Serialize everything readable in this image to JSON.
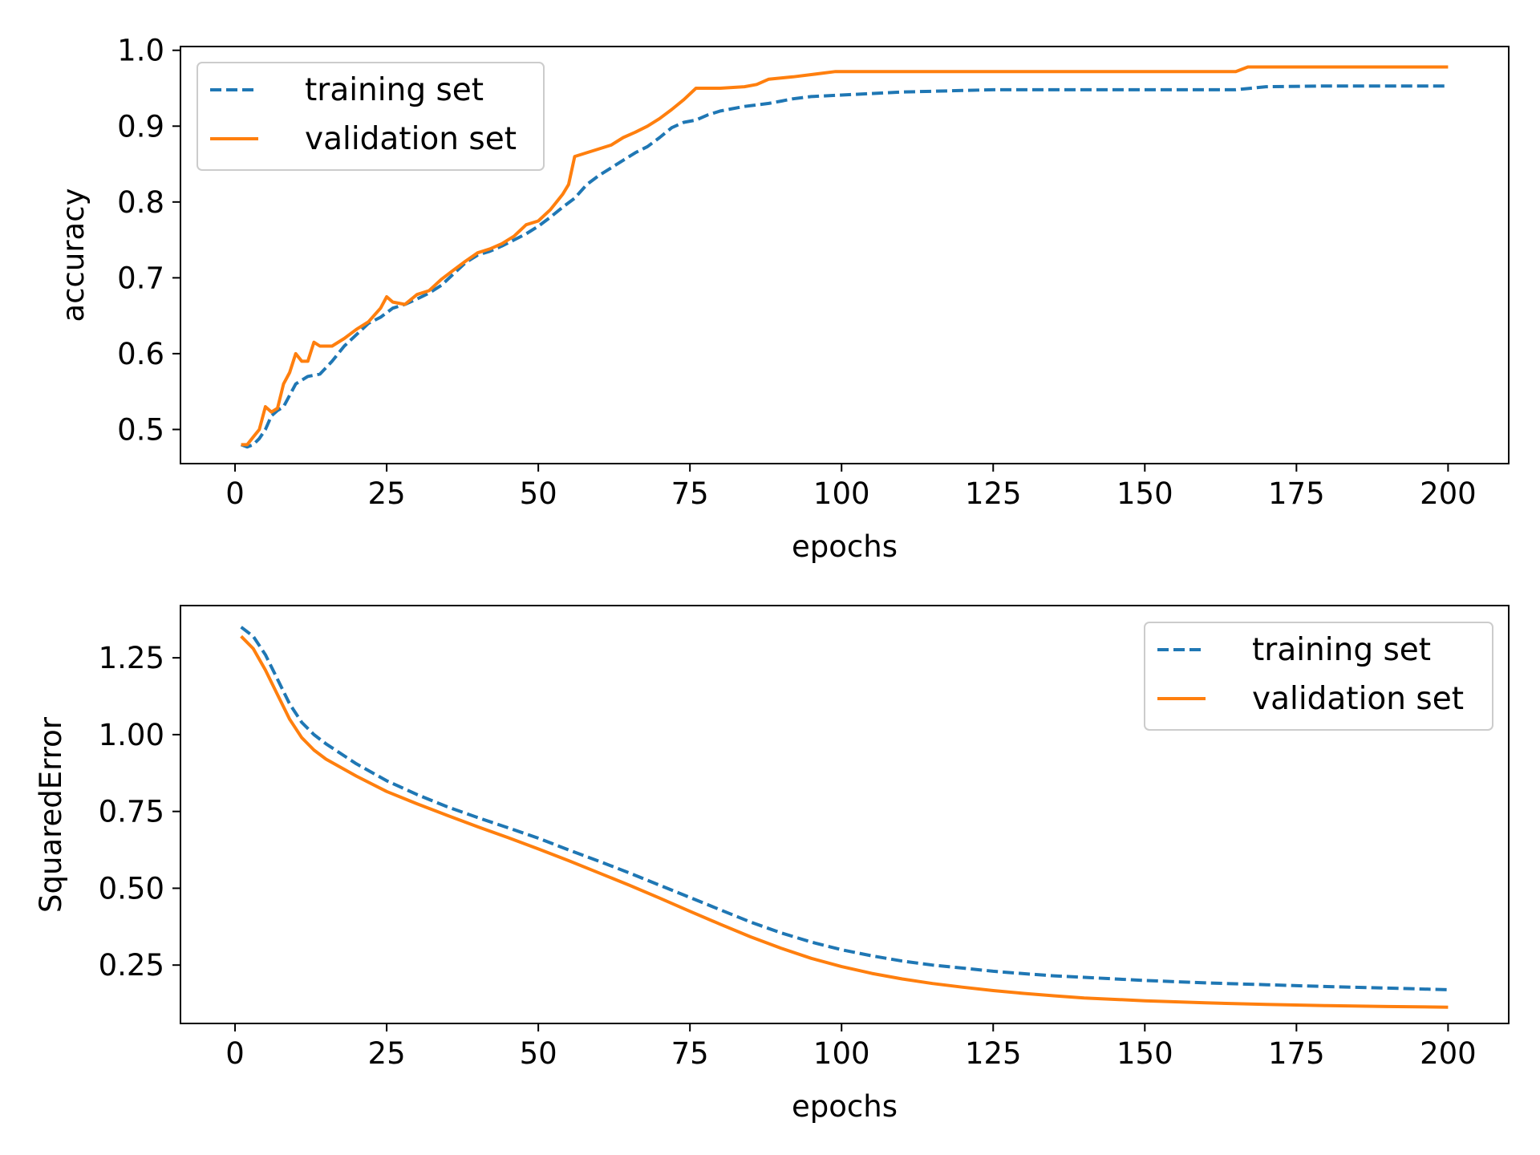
{
  "chart_data": [
    {
      "type": "line",
      "xlabel": "epochs",
      "ylabel": "accuracy",
      "xlim": [
        -9,
        210
      ],
      "ylim": [
        0.455,
        1.005
      ],
      "xticks": [
        0,
        25,
        50,
        75,
        100,
        125,
        150,
        175,
        200
      ],
      "yticks": [
        0.5,
        0.6,
        0.7,
        0.8,
        0.9,
        1.0
      ],
      "ytick_labels": [
        "0.5",
        "0.6",
        "0.7",
        "0.8",
        "0.9",
        "1.0"
      ],
      "legend": "top-left",
      "grid": false,
      "series": [
        {
          "name": "training set",
          "style": "dashed",
          "color": "#1f77b4",
          "points": [
            [
              1,
              0.48
            ],
            [
              2,
              0.477
            ],
            [
              3,
              0.48
            ],
            [
              4,
              0.488
            ],
            [
              5,
              0.5
            ],
            [
              6,
              0.518
            ],
            [
              7,
              0.525
            ],
            [
              8,
              0.53
            ],
            [
              9,
              0.545
            ],
            [
              10,
              0.56
            ],
            [
              11,
              0.565
            ],
            [
              12,
              0.57
            ],
            [
              14,
              0.573
            ],
            [
              16,
              0.59
            ],
            [
              18,
              0.61
            ],
            [
              20,
              0.625
            ],
            [
              22,
              0.64
            ],
            [
              24,
              0.648
            ],
            [
              26,
              0.66
            ],
            [
              28,
              0.665
            ],
            [
              30,
              0.672
            ],
            [
              32,
              0.68
            ],
            [
              34,
              0.69
            ],
            [
              36,
              0.705
            ],
            [
              38,
              0.72
            ],
            [
              40,
              0.73
            ],
            [
              42,
              0.735
            ],
            [
              44,
              0.742
            ],
            [
              46,
              0.75
            ],
            [
              48,
              0.758
            ],
            [
              50,
              0.768
            ],
            [
              52,
              0.78
            ],
            [
              54,
              0.793
            ],
            [
              56,
              0.805
            ],
            [
              58,
              0.823
            ],
            [
              60,
              0.835
            ],
            [
              62,
              0.845
            ],
            [
              64,
              0.855
            ],
            [
              66,
              0.865
            ],
            [
              68,
              0.873
            ],
            [
              70,
              0.885
            ],
            [
              72,
              0.898
            ],
            [
              74,
              0.905
            ],
            [
              76,
              0.908
            ],
            [
              78,
              0.915
            ],
            [
              80,
              0.92
            ],
            [
              82,
              0.923
            ],
            [
              84,
              0.926
            ],
            [
              86,
              0.928
            ],
            [
              88,
              0.93
            ],
            [
              90,
              0.933
            ],
            [
              92,
              0.936
            ],
            [
              95,
              0.939
            ],
            [
              100,
              0.941
            ],
            [
              105,
              0.943
            ],
            [
              110,
              0.945
            ],
            [
              115,
              0.946
            ],
            [
              120,
              0.947
            ],
            [
              125,
              0.948
            ],
            [
              140,
              0.948
            ],
            [
              165,
              0.948
            ],
            [
              170,
              0.952
            ],
            [
              180,
              0.953
            ],
            [
              200,
              0.953
            ]
          ]
        },
        {
          "name": "validation set",
          "style": "solid",
          "color": "#ff7f0e",
          "points": [
            [
              1,
              0.48
            ],
            [
              2,
              0.48
            ],
            [
              3,
              0.49
            ],
            [
              4,
              0.5
            ],
            [
              5,
              0.53
            ],
            [
              6,
              0.523
            ],
            [
              7,
              0.528
            ],
            [
              8,
              0.56
            ],
            [
              9,
              0.575
            ],
            [
              10,
              0.6
            ],
            [
              11,
              0.59
            ],
            [
              12,
              0.59
            ],
            [
              13,
              0.615
            ],
            [
              14,
              0.61
            ],
            [
              16,
              0.61
            ],
            [
              18,
              0.62
            ],
            [
              20,
              0.632
            ],
            [
              22,
              0.642
            ],
            [
              24,
              0.66
            ],
            [
              25,
              0.675
            ],
            [
              26,
              0.668
            ],
            [
              28,
              0.665
            ],
            [
              30,
              0.678
            ],
            [
              32,
              0.683
            ],
            [
              34,
              0.698
            ],
            [
              36,
              0.71
            ],
            [
              38,
              0.722
            ],
            [
              40,
              0.733
            ],
            [
              42,
              0.738
            ],
            [
              44,
              0.745
            ],
            [
              46,
              0.755
            ],
            [
              48,
              0.77
            ],
            [
              50,
              0.775
            ],
            [
              52,
              0.79
            ],
            [
              54,
              0.81
            ],
            [
              55,
              0.823
            ],
            [
              56,
              0.86
            ],
            [
              58,
              0.865
            ],
            [
              60,
              0.87
            ],
            [
              62,
              0.875
            ],
            [
              64,
              0.885
            ],
            [
              66,
              0.892
            ],
            [
              68,
              0.9
            ],
            [
              70,
              0.91
            ],
            [
              72,
              0.922
            ],
            [
              74,
              0.935
            ],
            [
              76,
              0.95
            ],
            [
              80,
              0.95
            ],
            [
              84,
              0.952
            ],
            [
              86,
              0.955
            ],
            [
              88,
              0.962
            ],
            [
              92,
              0.965
            ],
            [
              95,
              0.968
            ],
            [
              99,
              0.972
            ],
            [
              120,
              0.972
            ],
            [
              165,
              0.972
            ],
            [
              167,
              0.978
            ],
            [
              200,
              0.978
            ]
          ]
        }
      ]
    },
    {
      "type": "line",
      "xlabel": "epochs",
      "ylabel": "SquaredError",
      "xlim": [
        -9,
        210
      ],
      "ylim": [
        0.06,
        1.42
      ],
      "xticks": [
        0,
        25,
        50,
        75,
        100,
        125,
        150,
        175,
        200
      ],
      "yticks": [
        0.25,
        0.5,
        0.75,
        1.0,
        1.25
      ],
      "ytick_labels": [
        "0.25",
        "0.50",
        "0.75",
        "1.00",
        "1.25"
      ],
      "legend": "top-right",
      "grid": false,
      "series": [
        {
          "name": "training set",
          "style": "dashed",
          "color": "#1f77b4",
          "points": [
            [
              1,
              1.35
            ],
            [
              3,
              1.32
            ],
            [
              5,
              1.26
            ],
            [
              7,
              1.18
            ],
            [
              9,
              1.1
            ],
            [
              11,
              1.04
            ],
            [
              13,
              1.0
            ],
            [
              15,
              0.97
            ],
            [
              20,
              0.905
            ],
            [
              25,
              0.85
            ],
            [
              30,
              0.805
            ],
            [
              35,
              0.765
            ],
            [
              40,
              0.73
            ],
            [
              45,
              0.697
            ],
            [
              50,
              0.663
            ],
            [
              55,
              0.625
            ],
            [
              60,
              0.588
            ],
            [
              65,
              0.55
            ],
            [
              70,
              0.51
            ],
            [
              75,
              0.47
            ],
            [
              80,
              0.43
            ],
            [
              85,
              0.39
            ],
            [
              90,
              0.355
            ],
            [
              95,
              0.325
            ],
            [
              100,
              0.3
            ],
            [
              105,
              0.28
            ],
            [
              110,
              0.263
            ],
            [
              115,
              0.25
            ],
            [
              120,
              0.24
            ],
            [
              125,
              0.23
            ],
            [
              130,
              0.222
            ],
            [
              135,
              0.215
            ],
            [
              140,
              0.21
            ],
            [
              150,
              0.2
            ],
            [
              160,
              0.192
            ],
            [
              170,
              0.186
            ],
            [
              180,
              0.18
            ],
            [
              190,
              0.175
            ],
            [
              200,
              0.17
            ]
          ]
        },
        {
          "name": "validation set",
          "style": "solid",
          "color": "#ff7f0e",
          "points": [
            [
              1,
              1.32
            ],
            [
              3,
              1.28
            ],
            [
              5,
              1.21
            ],
            [
              7,
              1.13
            ],
            [
              9,
              1.05
            ],
            [
              11,
              0.99
            ],
            [
              13,
              0.95
            ],
            [
              15,
              0.92
            ],
            [
              20,
              0.865
            ],
            [
              25,
              0.815
            ],
            [
              30,
              0.775
            ],
            [
              35,
              0.737
            ],
            [
              40,
              0.7
            ],
            [
              45,
              0.665
            ],
            [
              50,
              0.628
            ],
            [
              55,
              0.59
            ],
            [
              60,
              0.55
            ],
            [
              65,
              0.51
            ],
            [
              70,
              0.468
            ],
            [
              75,
              0.425
            ],
            [
              80,
              0.383
            ],
            [
              85,
              0.342
            ],
            [
              90,
              0.305
            ],
            [
              95,
              0.272
            ],
            [
              100,
              0.245
            ],
            [
              105,
              0.223
            ],
            [
              110,
              0.205
            ],
            [
              115,
              0.19
            ],
            [
              120,
              0.178
            ],
            [
              125,
              0.167
            ],
            [
              130,
              0.158
            ],
            [
              135,
              0.15
            ],
            [
              140,
              0.143
            ],
            [
              150,
              0.134
            ],
            [
              160,
              0.127
            ],
            [
              170,
              0.122
            ],
            [
              180,
              0.118
            ],
            [
              190,
              0.115
            ],
            [
              200,
              0.113
            ]
          ]
        }
      ]
    }
  ]
}
